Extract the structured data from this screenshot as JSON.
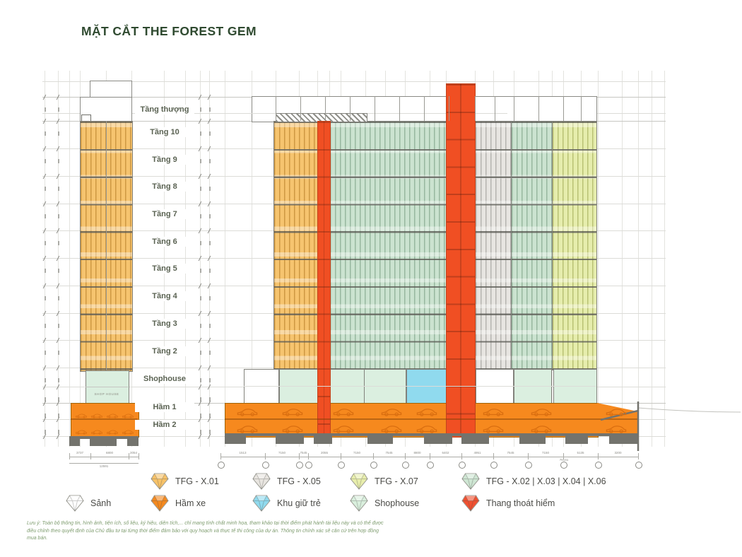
{
  "title": "MẶT CẮT THE FOREST GEM",
  "floor_labels": [
    "Tầng thượng",
    "Tầng 10",
    "Tầng 9",
    "Tầng 8",
    "Tầng 7",
    "Tầng 6",
    "Tầng 5",
    "Tầng 4",
    "Tầng 3",
    "Tầng 2",
    "Shophouse",
    "Hầm 1",
    "Hầm 2"
  ],
  "left_tower": {
    "shop_label": "SHOP HOUSE",
    "dim_segments": [
      "3737",
      "6800",
      "2054"
    ],
    "dim_total": "12591"
  },
  "main_building": {
    "dim_segments": [
      "1513",
      "7150",
      "7545",
      "2055",
      "7150",
      "7545",
      "8800",
      "6402",
      "4951",
      "7545",
      "7150",
      "5135",
      "3200"
    ],
    "dim_total": "76141"
  },
  "basement_cars": {
    "left_per_level": 4,
    "right_per_level": 8
  },
  "colors": {
    "facade_orange": "#F6C46F",
    "facade_green": "#CBE3D0",
    "facade_gray": "#E7E5E1",
    "facade_yellow_green": "#E6EDAD",
    "escape_red": "#F04F23",
    "basement_orange": "#F6891E",
    "shophouse_green": "#DBEFE0",
    "nursery_blue": "#90DAEE",
    "title_green": "#2F4A30"
  },
  "legend": {
    "items": [
      {
        "label": "TFG - X.01",
        "color": "#F7C268"
      },
      {
        "label": "TFG - X.05",
        "color": "#E8E5E0"
      },
      {
        "label": "TFG - X.07",
        "color": "#E8EEAC"
      },
      {
        "label": "TFG - X.02 | X.03 | X.04 | X.06",
        "color": "#CEE6D3"
      },
      {
        "label": "Sảnh",
        "color": "#FFFFFF"
      },
      {
        "label": "Hầm xe",
        "color": "#F5891E"
      },
      {
        "label": "Khu giữ trẻ",
        "color": "#90DAEE"
      },
      {
        "label": "Shophouse",
        "color": "#D9EFDD"
      },
      {
        "label": "Thang thoát hiểm",
        "color": "#F05030"
      }
    ]
  },
  "footnote": "Lưu ý: Toàn bộ thông tin, hình ảnh, tiện ích, số liệu, ký hiệu, diện tích,... chỉ mang tính chất minh họa, tham khảo tại thời điểm phát hành tài liệu này và có thể được điều chỉnh theo quyết định của Chủ đầu tư tại từng thời điểm đảm bảo với quy hoạch và thực tế thi công của dự án. Thông tin chính xác sẽ căn cứ trên hợp đồng mua bán."
}
